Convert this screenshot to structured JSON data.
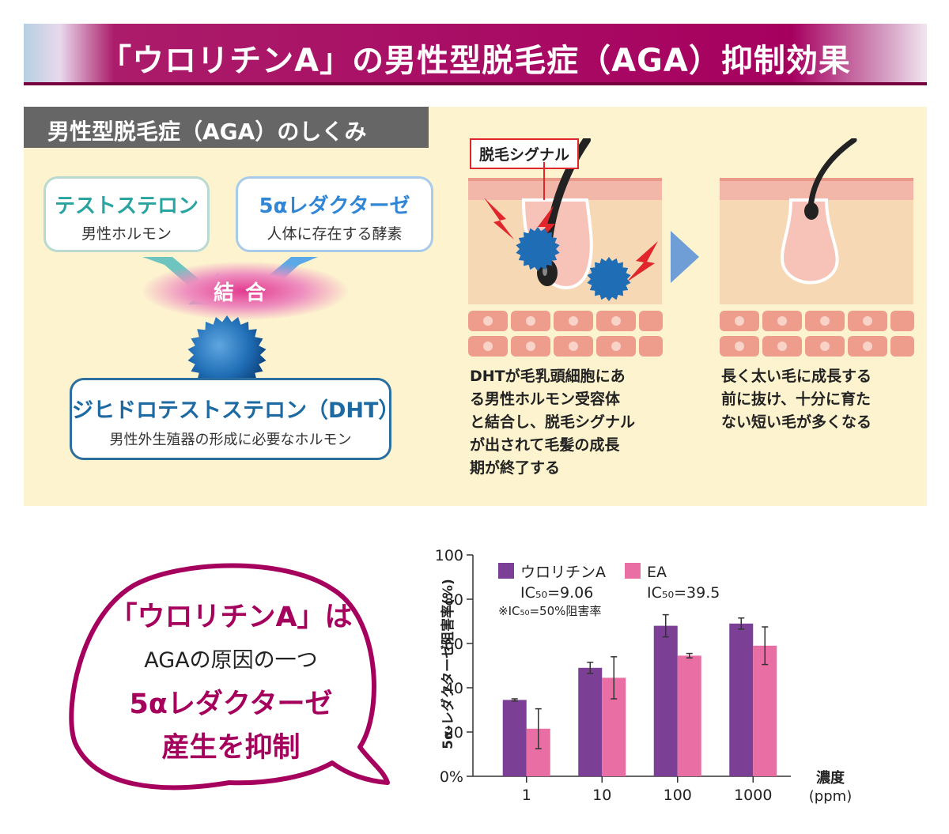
{
  "title": "「ウロリチンA」の男性型脱毛症（AGA）抑制効果",
  "mechanism": {
    "heading": "男性型脱毛症（AGA）のしくみ",
    "testosterone": {
      "title": "テストステロン",
      "sub": "男性ホルモン"
    },
    "reductase": {
      "title": "5αレダクターゼ",
      "sub": "人体に存在する酵素"
    },
    "bind_label": "結合",
    "dht": {
      "title": "ジヒドロテストステロン（DHT）",
      "sub": "男性外生殖器の形成に必要なホルモン"
    },
    "signal_label": "脱毛シグナル",
    "caption_left": [
      "DHTが毛乳頭細胞にあ",
      "る男性ホルモン受容体",
      "と結合し、脱毛シグナル",
      "が出されて毛髪の成長",
      "期が終了する"
    ],
    "caption_right": [
      "長く太い毛に成長する",
      "前に抜け、十分に育た",
      "ない短い毛が多くなる"
    ]
  },
  "bubble": {
    "line1": "「ウロリチンA」は",
    "line2": "AGAの原因の一つ",
    "line3": "5αレダクターゼ",
    "line4": "産生を抑制"
  },
  "chart_data": {
    "type": "bar",
    "ylabel": "5α-レダクターゼ阻害率(%)",
    "xlabel": "濃度",
    "xunit": "(ppm)",
    "categories": [
      "1",
      "10",
      "100",
      "1000"
    ],
    "ylim": [
      0,
      100
    ],
    "yticks": [
      0,
      20,
      40,
      60,
      80,
      100
    ],
    "ytick_labels": [
      "0%",
      "20",
      "40",
      "60",
      "80",
      "100"
    ],
    "series": [
      {
        "name": "ウロリチンA",
        "ic50": "IC₅₀=9.06",
        "color": "#7b3f96",
        "values": [
          34.5,
          49,
          68,
          69
        ],
        "errors": [
          0.5,
          2.5,
          5,
          2.5
        ]
      },
      {
        "name": "EA",
        "ic50": "IC₅₀=39.5",
        "color": "#e86ea4",
        "values": [
          21.5,
          44.5,
          54.5,
          59
        ],
        "errors": [
          9,
          9.5,
          1,
          8.5
        ]
      }
    ],
    "note": "※IC₅₀=50%阻害率"
  },
  "colors": {
    "brand": "#a6005f",
    "teal": "#2aa4a0",
    "blue": "#2f86d6",
    "dht_blue": "#1d6aa3",
    "panel_bg": "#fdf4cf"
  }
}
